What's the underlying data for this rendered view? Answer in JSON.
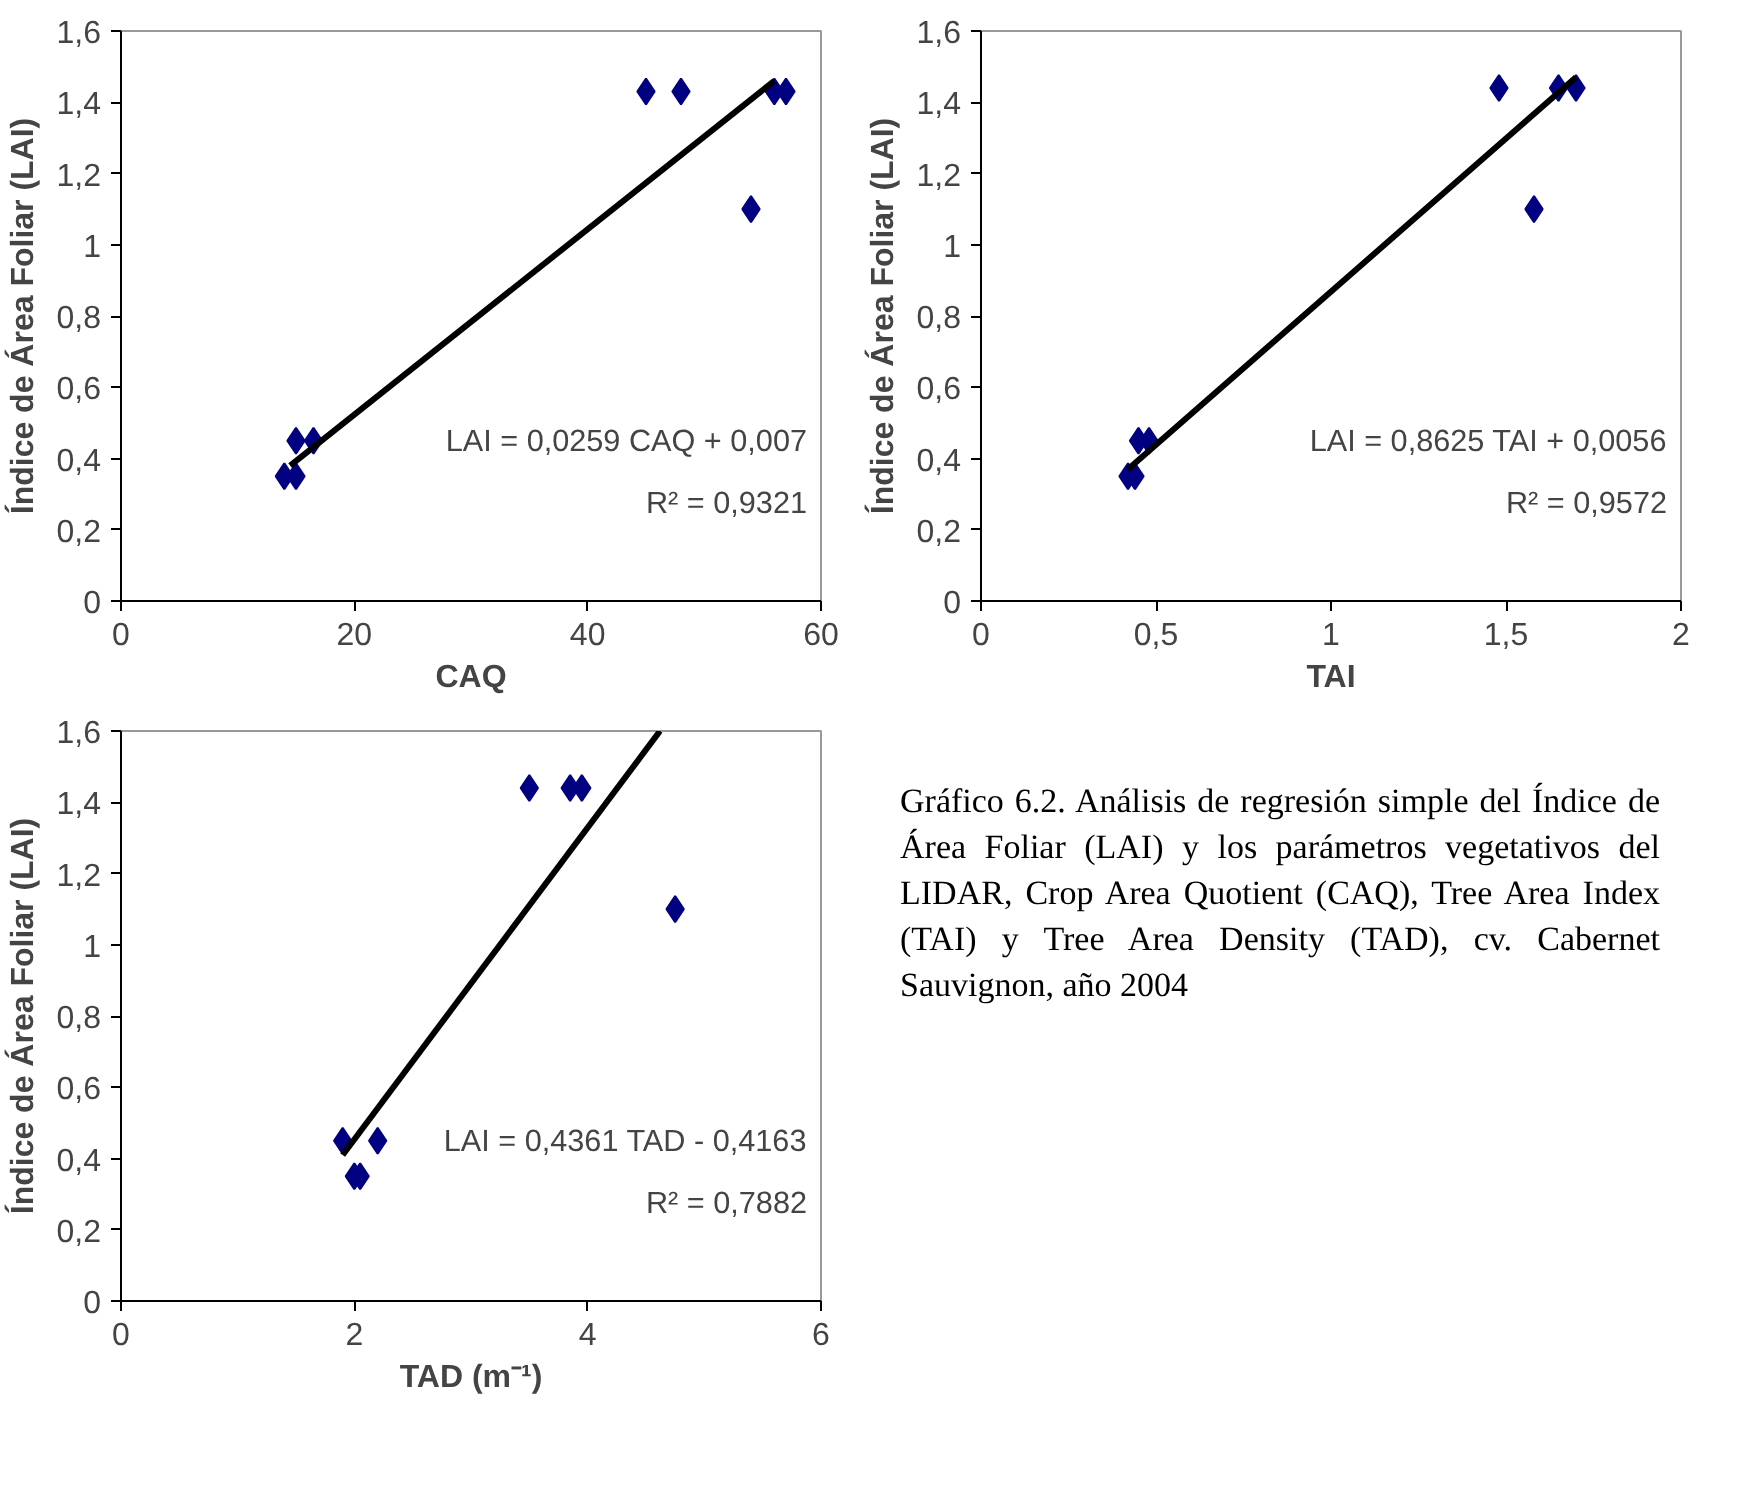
{
  "chart_data": [
    {
      "type": "scatter",
      "xlabel": "CAQ",
      "ylabel": "Índice de Área Foliar (LAI)",
      "xlim": [
        0,
        60
      ],
      "ylim": [
        0,
        1.6
      ],
      "xticks": [
        0,
        20,
        40,
        60
      ],
      "yticks": [
        0,
        {
          "value": 0.2,
          "label": "0,2"
        },
        {
          "value": 0.4,
          "label": "0,4"
        },
        {
          "value": 0.6,
          "label": "0,6"
        },
        {
          "value": 0.8,
          "label": "0,8"
        },
        1,
        {
          "value": 1.2,
          "label": "1,2"
        },
        {
          "value": 1.4,
          "label": "1,4"
        },
        {
          "value": 1.6,
          "label": "1,6"
        }
      ],
      "grid": false,
      "series": [
        {
          "type": "scatter",
          "marker": "diamond",
          "color": "#000080",
          "x": [
            14,
            15,
            15,
            16.5,
            45,
            48,
            54,
            56,
            57
          ],
          "values": [
            0.35,
            0.35,
            0.45,
            0.45,
            1.43,
            1.43,
            1.1,
            1.43,
            1.43
          ]
        },
        {
          "type": "line",
          "marker": "none",
          "color": "#000000",
          "x": [
            14.5,
            56
          ],
          "values": [
            0.38,
            1.46
          ]
        }
      ],
      "annotations": [
        "LAI = 0,0259 CAQ + 0,007",
        "R² = 0,9321"
      ]
    },
    {
      "type": "scatter",
      "xlabel": "TAI",
      "ylabel": "Índice de Área Foliar (LAI)",
      "xlim": [
        0,
        2
      ],
      "ylim": [
        0,
        1.6
      ],
      "xticks": [
        0,
        {
          "value": 0.5,
          "label": "0,5"
        },
        1,
        {
          "value": 1.5,
          "label": "1,5"
        },
        2
      ],
      "yticks": [
        0,
        {
          "value": 0.2,
          "label": "0,2"
        },
        {
          "value": 0.4,
          "label": "0,4"
        },
        {
          "value": 0.6,
          "label": "0,6"
        },
        {
          "value": 0.8,
          "label": "0,8"
        },
        1,
        {
          "value": 1.2,
          "label": "1,2"
        },
        {
          "value": 1.4,
          "label": "1,4"
        },
        {
          "value": 1.6,
          "label": "1,6"
        }
      ],
      "grid": false,
      "series": [
        {
          "type": "scatter",
          "marker": "diamond",
          "color": "#000080",
          "x": [
            0.42,
            0.44,
            0.45,
            0.48,
            1.48,
            1.65,
            1.7,
            1.58
          ],
          "values": [
            0.35,
            0.35,
            0.45,
            0.45,
            1.44,
            1.44,
            1.44,
            1.1
          ]
        },
        {
          "type": "line",
          "marker": "none",
          "color": "#000000",
          "x": [
            0.42,
            1.7
          ],
          "values": [
            0.37,
            1.47
          ]
        }
      ],
      "annotations": [
        "LAI = 0,8625 TAI + 0,0056",
        "R² = 0,9572"
      ]
    },
    {
      "type": "scatter",
      "xlabel": "TAD (m⁻¹)",
      "ylabel": "Índice de Área Foliar (LAI)",
      "xlim": [
        0,
        6
      ],
      "ylim": [
        0,
        1.6
      ],
      "xticks": [
        0,
        2,
        4,
        6
      ],
      "yticks": [
        0,
        {
          "value": 0.2,
          "label": "0,2"
        },
        {
          "value": 0.4,
          "label": "0,4"
        },
        {
          "value": 0.6,
          "label": "0,6"
        },
        {
          "value": 0.8,
          "label": "0,8"
        },
        1,
        {
          "value": 1.2,
          "label": "1,2"
        },
        {
          "value": 1.4,
          "label": "1,4"
        },
        {
          "value": 1.6,
          "label": "1,6"
        }
      ],
      "grid": false,
      "series": [
        {
          "type": "scatter",
          "marker": "diamond",
          "color": "#000080",
          "x": [
            1.9,
            2.0,
            2.05,
            2.2,
            3.5,
            3.85,
            3.95,
            4.75
          ],
          "values": [
            0.45,
            0.35,
            0.35,
            0.45,
            1.44,
            1.44,
            1.44,
            1.1
          ]
        },
        {
          "type": "line",
          "marker": "none",
          "color": "#000000",
          "x": [
            1.9,
            4.62
          ],
          "values": [
            0.41,
            1.6
          ]
        }
      ],
      "annotations": [
        "LAI = 0,4361 TAD - 0,4163",
        "R² = 0,7882"
      ]
    },
    {
      "type": "other",
      "annotations": [
        "Gráfico 6.2. Análisis de regresión simple del Índice de Área Foliar (LAI) y los parámetros vegetativos del LIDAR, Crop Area Quotient (CAQ), Tree Area Index (TAI) y Tree Area Density (TAD), cv. Cabernet Sauvignon, año 2004"
      ]
    }
  ]
}
